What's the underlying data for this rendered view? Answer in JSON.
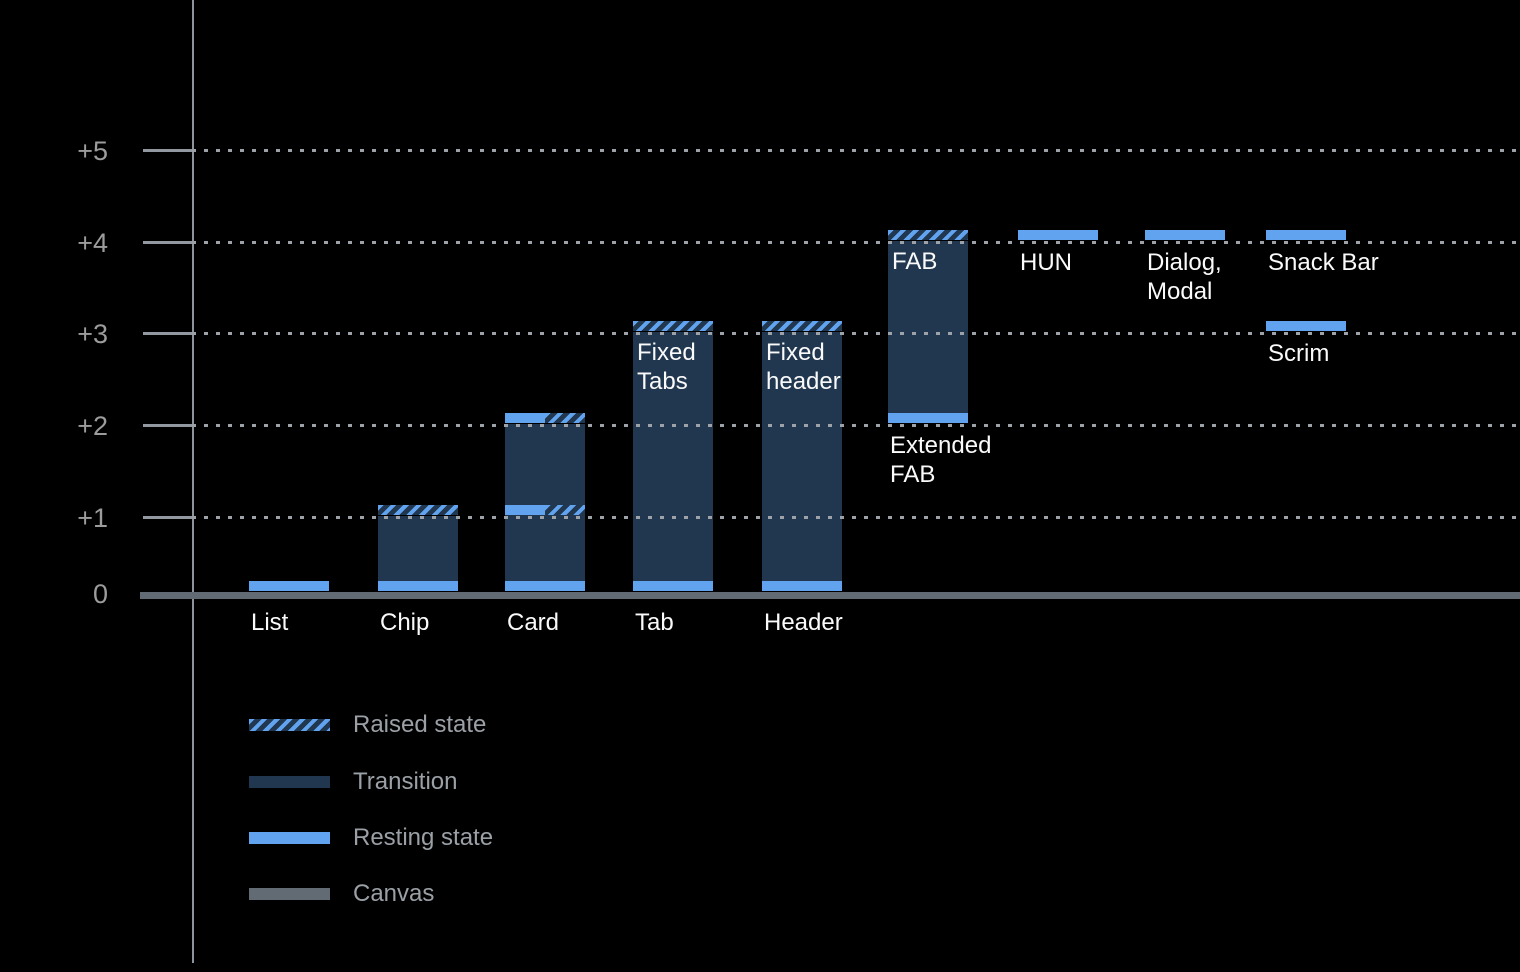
{
  "colors": {
    "background": "#000000",
    "resting_blue": "#61A3EE",
    "transition_navy": "#213750",
    "canvas_gray": "#626A74",
    "axis_gray": "#8E949B",
    "grid_dot_gray": "#9CA2A8",
    "axis_label_gray": "#9C9C9C",
    "legend_text_gray": "#9AA0A6",
    "label_white": "#FAFAFA"
  },
  "chart_data": {
    "type": "bar",
    "title": "",
    "y_axis": {
      "values": [
        5,
        4,
        3,
        2,
        1,
        0
      ],
      "tick_labels": [
        "+5",
        "+4",
        "+3",
        "+2",
        "+1",
        "0"
      ],
      "range": [
        0,
        5
      ],
      "gridlines": "dotted-horizontal",
      "baseline_value": 0
    },
    "legend": {
      "position": "bottom-left",
      "items": [
        {
          "label": "Raised state",
          "style": "raised"
        },
        {
          "label": "Transition",
          "style": "transition"
        },
        {
          "label": "Resting state",
          "style": "resting"
        },
        {
          "label": "Canvas",
          "style": "canvas"
        }
      ]
    },
    "components": [
      {
        "id": "list",
        "col": 0,
        "label": "List",
        "label_at": "baseline",
        "segments": [
          {
            "kind": "resting",
            "level": 0
          }
        ]
      },
      {
        "id": "chip",
        "col": 1,
        "label": "Chip",
        "label_at": "baseline",
        "segments": [
          {
            "kind": "resting",
            "level": 0
          },
          {
            "kind": "transition",
            "from": 0,
            "to": 1
          },
          {
            "kind": "raised",
            "level": 1
          }
        ]
      },
      {
        "id": "card",
        "col": 2,
        "label": "Card",
        "label_at": "baseline",
        "segments": [
          {
            "kind": "resting",
            "level": 0
          },
          {
            "kind": "transition",
            "from": 0,
            "to": 2
          },
          {
            "kind": "resting-raised",
            "level": 1
          },
          {
            "kind": "resting-raised",
            "level": 2
          }
        ]
      },
      {
        "id": "tab",
        "col": 3,
        "label": "Tab",
        "label_at": "baseline",
        "inner_label": "Fixed\nTabs",
        "inner_label_level": 3,
        "segments": [
          {
            "kind": "resting",
            "level": 0
          },
          {
            "kind": "transition",
            "from": 0,
            "to": 3
          },
          {
            "kind": "raised",
            "level": 3
          }
        ]
      },
      {
        "id": "header",
        "col": 4,
        "label": "Header",
        "label_at": "baseline",
        "inner_label": "Fixed\nheader",
        "inner_label_level": 3,
        "segments": [
          {
            "kind": "resting",
            "level": 0
          },
          {
            "kind": "transition",
            "from": 0,
            "to": 3
          },
          {
            "kind": "raised",
            "level": 3
          }
        ]
      },
      {
        "id": "extended-fab",
        "col": 5,
        "label": "Extended\nFAB",
        "label_at": "below-level",
        "label_level": 2,
        "inner_label": "FAB",
        "inner_label_level": 4,
        "segments": [
          {
            "kind": "resting",
            "level": 2
          },
          {
            "kind": "transition",
            "from": 2,
            "to": 4
          },
          {
            "kind": "raised",
            "level": 4
          }
        ]
      },
      {
        "id": "hun",
        "col": 6,
        "label": "HUN",
        "label_at": "below-level",
        "label_level": 4,
        "segments": [
          {
            "kind": "resting",
            "level": 4
          }
        ]
      },
      {
        "id": "dialog-modal",
        "col": 7,
        "label": "Dialog,\nModal",
        "label_at": "below-level",
        "label_level": 4,
        "segments": [
          {
            "kind": "resting",
            "level": 4
          }
        ]
      },
      {
        "id": "snack-bar",
        "col": 8,
        "label": "Snack Bar",
        "label_at": "below-level",
        "label_level": 4,
        "segments": [
          {
            "kind": "resting",
            "level": 4
          }
        ]
      },
      {
        "id": "scrim",
        "col": 8,
        "label": "Scrim",
        "label_at": "below-level",
        "label_level": 3,
        "segments": [
          {
            "kind": "resting",
            "level": 3
          }
        ]
      }
    ]
  }
}
